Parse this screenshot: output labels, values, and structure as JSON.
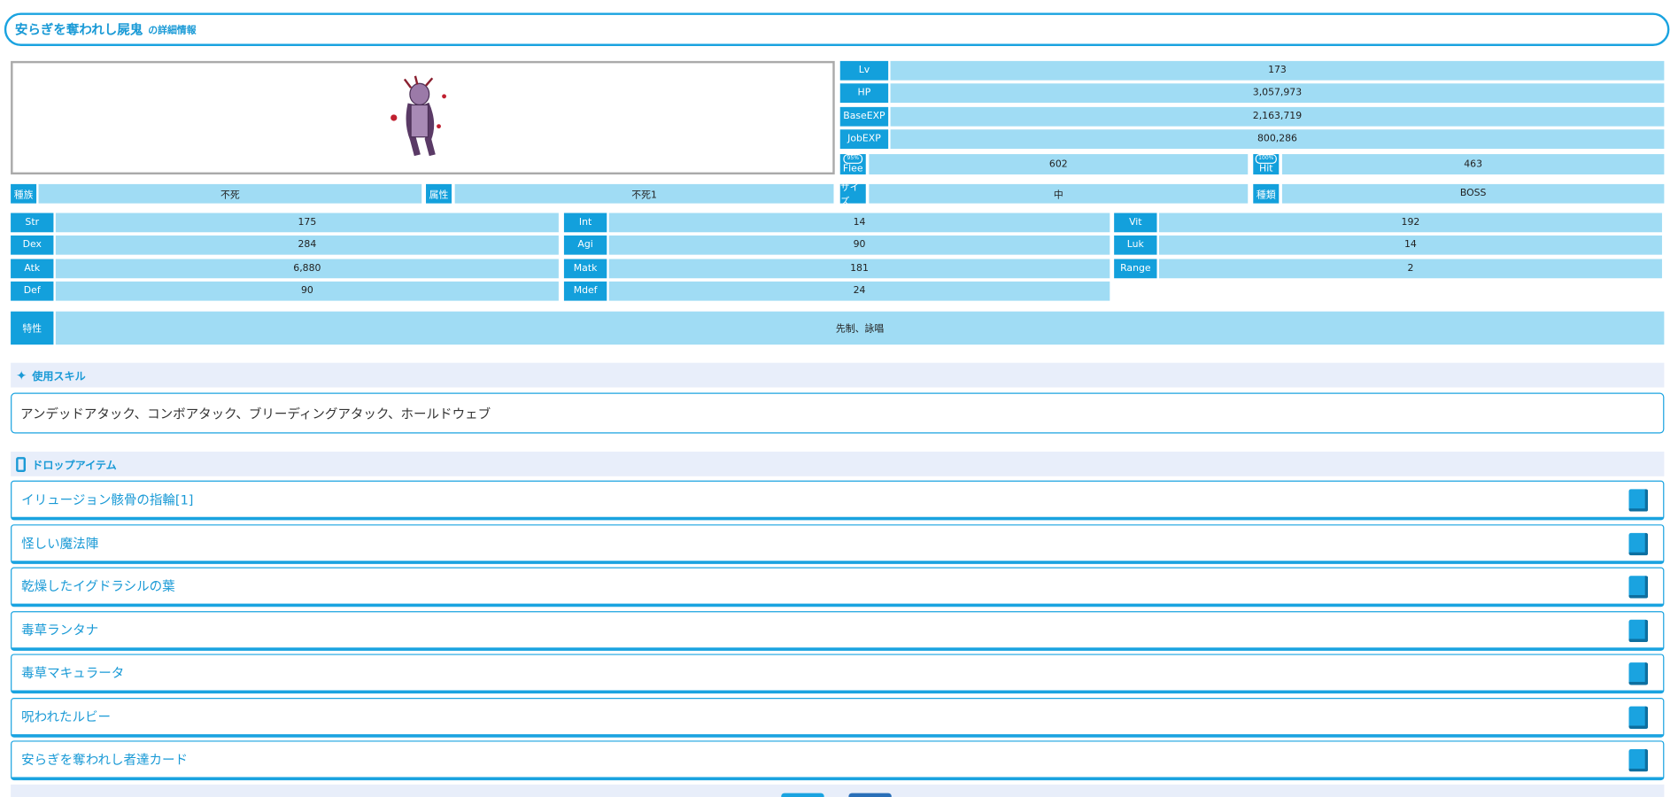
{
  "header": {
    "title": "安らぎを奪われし屍鬼",
    "suffix": "の詳細情報"
  },
  "basic": [
    {
      "label": "Lv",
      "value": "173"
    },
    {
      "label": "HP",
      "value": "3,057,973"
    },
    {
      "label": "BaseEXP",
      "value": "2,163,719"
    },
    {
      "label": "JobEXP",
      "value": "800,286"
    }
  ],
  "rates": [
    {
      "label": "Flee",
      "badge": "95%",
      "value": "602"
    },
    {
      "label": "Hit",
      "badge": "100%",
      "value": "463"
    }
  ],
  "attributes": [
    {
      "label": "種族",
      "value": "不死"
    },
    {
      "label": "属性",
      "value": "不死1"
    },
    {
      "label": "サイズ",
      "value": "中"
    },
    {
      "label": "種類",
      "value": "BOSS"
    }
  ],
  "stats": [
    {
      "label": "Str",
      "value": "175"
    },
    {
      "label": "Int",
      "value": "14"
    },
    {
      "label": "Vit",
      "value": "192"
    },
    {
      "label": "Dex",
      "value": "284"
    },
    {
      "label": "Agi",
      "value": "90"
    },
    {
      "label": "Luk",
      "value": "14"
    },
    {
      "label": "Atk",
      "value": "6,880"
    },
    {
      "label": "Matk",
      "value": "181"
    },
    {
      "label": "Range",
      "value": "2"
    },
    {
      "label": "Def",
      "value": "90"
    },
    {
      "label": "Mdef",
      "value": "24"
    }
  ],
  "trait": {
    "label": "特性",
    "value": "先制、詠唱"
  },
  "skills": {
    "heading": "使用スキル",
    "text": "アンデッドアタック、コンボアタック、ブリーディングアタック、ホールドウェブ"
  },
  "drops": {
    "heading": "ドロップアイテム",
    "items": [
      "イリュージョン骸骨の指輪[1]",
      "怪しい魔法陣",
      "乾燥したイグドラシルの葉",
      "毒草ランタナ",
      "毒草マキュラータ",
      "呪われたルビー",
      "安らぎを奪われし者達カード"
    ]
  }
}
